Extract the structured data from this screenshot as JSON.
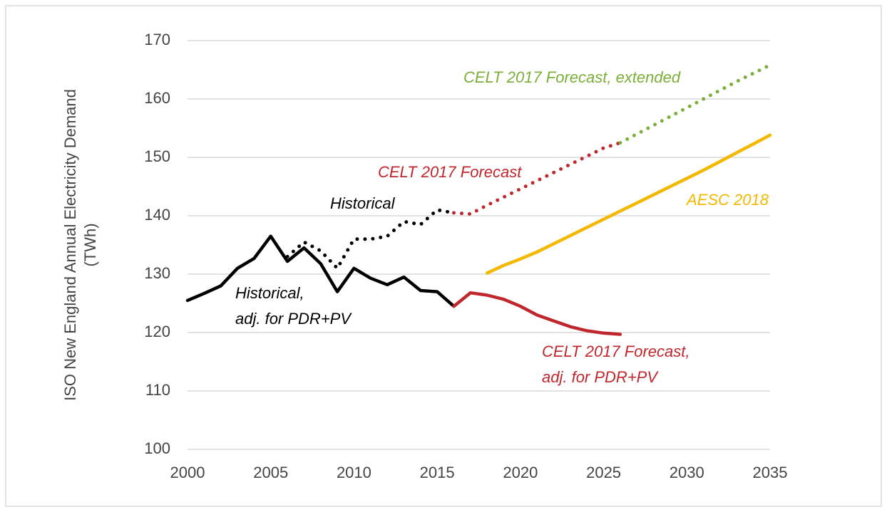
{
  "chart_data": {
    "type": "line",
    "ylabel": [
      "ISO New England Annual Electricity Demand",
      "(TWh)"
    ],
    "xlim": [
      2000,
      2035
    ],
    "xticks": [
      2000,
      2005,
      2010,
      2015,
      2020,
      2025,
      2030,
      2035
    ],
    "ylim": [
      100,
      170
    ],
    "yticks": [
      100,
      110,
      120,
      130,
      140,
      150,
      160,
      170
    ],
    "grid": true,
    "series": [
      {
        "name": "Historical, adj. for PDR+PV",
        "color": "#000000",
        "dash": "solid",
        "x": [
          2000,
          2001,
          2002,
          2003,
          2004,
          2005,
          2006,
          2007,
          2008,
          2009,
          2010,
          2011,
          2012,
          2013,
          2014,
          2015,
          2016
        ],
        "values": [
          125.5,
          126.7,
          128,
          131,
          132.7,
          136.5,
          132.2,
          134.5,
          131.8,
          127,
          131,
          129.3,
          128.2,
          129.5,
          127.2,
          127,
          124.5
        ]
      },
      {
        "name": "Historical",
        "color": "#000000",
        "dash": "dotted",
        "x": [
          2006,
          2007,
          2008,
          2009,
          2010,
          2011,
          2012,
          2013,
          2014,
          2015,
          2016
        ],
        "values": [
          133,
          135.5,
          134,
          131,
          136,
          136,
          136.5,
          139,
          138.5,
          141,
          140.5
        ]
      },
      {
        "name": "CELT 2017 Forecast",
        "color": "#c0272d",
        "dash": "dotted",
        "x": [
          2016,
          2017,
          2018,
          2019,
          2020,
          2021,
          2022,
          2023,
          2024,
          2025,
          2026
        ],
        "values": [
          140.5,
          140.3,
          141.8,
          143.2,
          144.6,
          146,
          147.4,
          148.8,
          150.2,
          151.6,
          152.5
        ]
      },
      {
        "name": "CELT 2017 Forecast, extended",
        "color": "#7cae3a",
        "dash": "dotted",
        "x": [
          2026,
          2027,
          2028,
          2029,
          2030,
          2031,
          2032,
          2033,
          2034,
          2035
        ],
        "values": [
          152.5,
          154,
          155.5,
          157,
          158.5,
          160,
          161.5,
          163,
          164.4,
          165.8
        ]
      },
      {
        "name": "AESC 2018",
        "color": "#f5b800",
        "dash": "solid",
        "x": [
          2018,
          2019,
          2020,
          2021,
          2022,
          2023,
          2024,
          2025,
          2026,
          2027,
          2028,
          2029,
          2030,
          2031,
          2032,
          2033,
          2034,
          2035
        ],
        "values": [
          130.2,
          131.5,
          132.6,
          133.8,
          135.2,
          136.6,
          138,
          139.4,
          140.8,
          142.2,
          143.6,
          145,
          146.4,
          147.8,
          149.3,
          150.8,
          152.3,
          153.8
        ]
      },
      {
        "name": "CELT 2017 Forecast, adj. for PDR+PV",
        "color": "#c0272d",
        "dash": "solid",
        "x": [
          2016,
          2017,
          2018,
          2019,
          2020,
          2021,
          2022,
          2023,
          2024,
          2025,
          2026
        ],
        "values": [
          124.5,
          126.8,
          126.4,
          125.7,
          124.5,
          123,
          122,
          121,
          120.3,
          119.9,
          119.7
        ]
      }
    ],
    "annotations": [
      {
        "lines": [
          "CELT 2017 Forecast, extended"
        ],
        "color": "#7cae3a"
      },
      {
        "lines": [
          "CELT 2017 Forecast"
        ],
        "color": "#c0272d"
      },
      {
        "lines": [
          "AESC 2018"
        ],
        "color": "#f5b800"
      },
      {
        "lines": [
          "Historical"
        ],
        "color": "#000000"
      },
      {
        "lines": [
          "Historical,",
          "adj. for PDR+PV"
        ],
        "color": "#000000"
      },
      {
        "lines": [
          "CELT 2017 Forecast,",
          "adj. for PDR+PV"
        ],
        "color": "#c0272d"
      }
    ]
  }
}
